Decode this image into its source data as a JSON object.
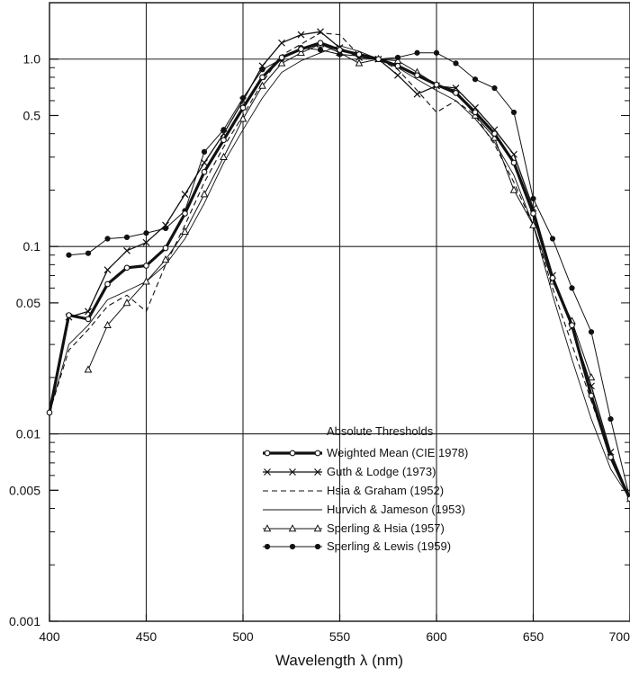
{
  "chart_data": {
    "type": "line",
    "title": "",
    "xlabel": "Wavelength λ (nm)",
    "ylabel": "",
    "xlim": [
      400,
      700
    ],
    "ylim": [
      0.001,
      2
    ],
    "yscale": "log",
    "grid": true,
    "x_ticks": [
      400,
      450,
      500,
      550,
      600,
      650,
      700
    ],
    "x_tick_labels": [
      "400",
      "450",
      "500",
      "550",
      "600",
      "650",
      "700"
    ],
    "y_ticks": [
      0.001,
      0.005,
      0.01,
      0.05,
      0.1,
      0.5,
      1.0
    ],
    "y_tick_labels": [
      "0.001",
      "0.005",
      "0.01",
      "0.05",
      "0.1",
      "0.5",
      "1.0"
    ],
    "legend": {
      "title": "Absolute Thresholds",
      "position": "bottom-center"
    },
    "series": [
      {
        "name": "Weighted Mean (CIE 1978)",
        "style": "thick-open-circle",
        "x": [
          400,
          410,
          420,
          430,
          440,
          450,
          460,
          470,
          480,
          490,
          500,
          510,
          520,
          530,
          540,
          550,
          560,
          570,
          580,
          590,
          600,
          610,
          620,
          630,
          640,
          650,
          660,
          670,
          680,
          690,
          700
        ],
        "y": [
          0.013,
          0.043,
          0.041,
          0.063,
          0.077,
          0.079,
          0.098,
          0.15,
          0.25,
          0.37,
          0.55,
          0.8,
          1.02,
          1.13,
          1.22,
          1.12,
          1.06,
          1.0,
          0.92,
          0.82,
          0.73,
          0.66,
          0.52,
          0.4,
          0.28,
          0.15,
          0.068,
          0.038,
          0.016,
          0.0075,
          0.0045
        ]
      },
      {
        "name": "Guth & Lodge (1973)",
        "style": "x-marker",
        "x": [
          410,
          420,
          430,
          440,
          450,
          460,
          470,
          480,
          490,
          500,
          510,
          520,
          530,
          540,
          550,
          560,
          570,
          580,
          590,
          600,
          610,
          620,
          630,
          640,
          650,
          660,
          670,
          680,
          690,
          700
        ],
        "y": [
          0.042,
          0.045,
          0.075,
          0.095,
          0.105,
          0.13,
          0.19,
          0.28,
          0.4,
          0.6,
          0.92,
          1.22,
          1.35,
          1.4,
          1.15,
          1.02,
          1.0,
          0.82,
          0.65,
          0.72,
          0.7,
          0.55,
          0.42,
          0.31,
          0.16,
          0.07,
          0.037,
          0.018,
          0.008,
          0.0045
        ]
      },
      {
        "name": "Hsia & Graham (1952)",
        "style": "dashed",
        "x": [
          400,
          410,
          420,
          430,
          440,
          450,
          460,
          470,
          480,
          490,
          500,
          510,
          520,
          530,
          540,
          550,
          560,
          570,
          580,
          590,
          600,
          610,
          620,
          630,
          640,
          650,
          660,
          670,
          680,
          690,
          700
        ],
        "y": [
          0.013,
          0.028,
          0.036,
          0.048,
          0.055,
          0.045,
          0.08,
          0.13,
          0.22,
          0.34,
          0.5,
          0.75,
          1.05,
          1.2,
          1.38,
          1.35,
          1.05,
          1.0,
          0.88,
          0.68,
          0.52,
          0.6,
          0.5,
          0.35,
          0.22,
          0.13,
          0.06,
          0.03,
          0.015,
          0.0075,
          0.0045
        ]
      },
      {
        "name": "Hurvich & Jameson (1953)",
        "style": "thin-solid",
        "x": [
          400,
          410,
          420,
          430,
          440,
          450,
          460,
          470,
          480,
          490,
          500,
          510,
          520,
          530,
          540,
          550,
          560,
          570,
          580,
          590,
          600,
          610,
          620,
          630,
          640,
          650,
          660,
          670,
          680,
          690,
          700
        ],
        "y": [
          0.013,
          0.03,
          0.038,
          0.052,
          0.058,
          0.065,
          0.08,
          0.11,
          0.17,
          0.28,
          0.42,
          0.62,
          0.85,
          0.98,
          1.08,
          1.18,
          1.1,
          1.0,
          0.9,
          0.78,
          0.68,
          0.6,
          0.48,
          0.36,
          0.24,
          0.13,
          0.055,
          0.025,
          0.012,
          0.0065,
          0.0045
        ]
      },
      {
        "name": "Sperling & Hsia (1957)",
        "style": "triangle-marker",
        "x": [
          420,
          430,
          440,
          450,
          460,
          470,
          480,
          490,
          500,
          510,
          520,
          530,
          540,
          550,
          560,
          570,
          580,
          590,
          600,
          610,
          620,
          630,
          640,
          650,
          660,
          670,
          680
        ],
        "y": [
          0.022,
          0.038,
          0.05,
          0.065,
          0.085,
          0.12,
          0.19,
          0.3,
          0.48,
          0.72,
          0.95,
          1.08,
          1.2,
          1.08,
          0.95,
          1.0,
          0.98,
          0.85,
          0.73,
          0.68,
          0.5,
          0.38,
          0.2,
          0.13,
          0.065,
          0.04,
          0.02
        ]
      },
      {
        "name": "Sperling & Lewis (1959)",
        "style": "filled-circle",
        "x": [
          410,
          420,
          430,
          440,
          450,
          460,
          470,
          480,
          490,
          500,
          510,
          520,
          530,
          540,
          550,
          560,
          570,
          580,
          590,
          600,
          610,
          620,
          630,
          640,
          650,
          660,
          670,
          680,
          690,
          700
        ],
        "y": [
          0.09,
          0.092,
          0.11,
          0.112,
          0.118,
          0.125,
          0.155,
          0.32,
          0.42,
          0.62,
          0.88,
          1.0,
          1.15,
          1.12,
          1.06,
          1.04,
          1.0,
          1.02,
          1.08,
          1.08,
          0.95,
          0.78,
          0.7,
          0.52,
          0.18,
          0.11,
          0.06,
          0.035,
          0.012,
          0.0045
        ]
      }
    ]
  }
}
